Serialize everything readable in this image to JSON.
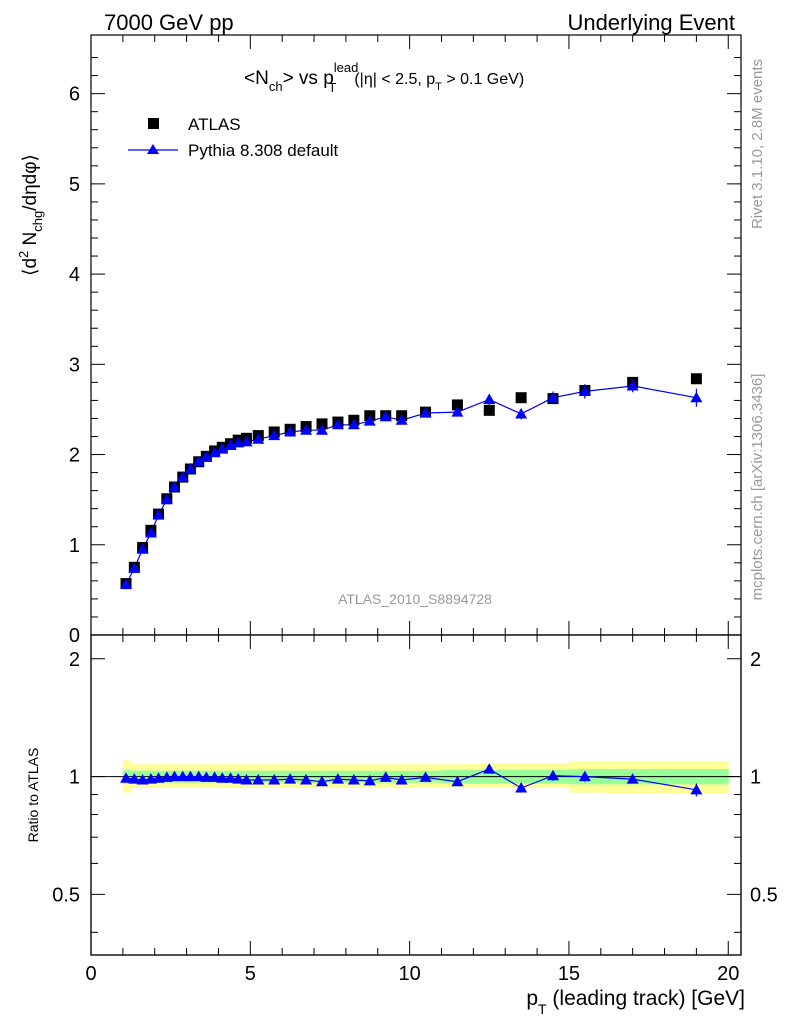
{
  "header": {
    "left": "7000 GeV pp",
    "right": "Underlying Event"
  },
  "plot_title": {
    "main": "<N",
    "main_sub": "ch",
    "vs": "> vs p",
    "vs_sup": "lead",
    "vs_sub": "T",
    "cuts_1": "(|η| < 2.5, p",
    "cuts_sub": "T",
    "cuts_2": " > 0.1 GeV)"
  },
  "side_labels": {
    "rivet": "Rivet 3.1.10,  2.8M events",
    "mcplots": "mcplots.cern.ch [arXiv:1306.3436]",
    "analysis": "ATLAS_2010_S8894728"
  },
  "legend": {
    "atlas": "ATLAS",
    "pythia": "Pythia 8.308 default"
  },
  "axes": {
    "ylabel_main_1": "⟨d",
    "ylabel_main_sup": "2",
    "ylabel_main_2": " N",
    "ylabel_main_sub": "chg",
    "ylabel_main_3": "/dηdφ⟩",
    "ylabel_ratio": "Ratio to ATLAS",
    "xlabel_1": "p",
    "xlabel_sub": "T",
    "xlabel_2": " (leading track) [GeV]"
  },
  "colors": {
    "data": "#000000",
    "mc": "#0000ff",
    "band_inner": "#99ff99",
    "band_outer": "#ffff99"
  },
  "chart_data": [
    {
      "type": "scatter",
      "panel": "main",
      "xlim": [
        0,
        20.4
      ],
      "ylim": [
        0,
        6.65
      ],
      "x_ticks": [
        0,
        5,
        10,
        15,
        20
      ],
      "y_ticks": [
        0,
        1,
        2,
        3,
        4,
        5,
        6
      ],
      "x_tick_labels": [
        "0",
        "5",
        "10",
        "15",
        "20"
      ],
      "y_tick_labels": [
        "0",
        "1",
        "2",
        "3",
        "4",
        "5",
        "6"
      ],
      "series": [
        {
          "name": "ATLAS",
          "marker": "square",
          "x": [
            1.1,
            1.36,
            1.62,
            1.88,
            2.12,
            2.38,
            2.62,
            2.88,
            3.12,
            3.38,
            3.62,
            3.88,
            4.12,
            4.38,
            4.62,
            4.88,
            5.25,
            5.75,
            6.25,
            6.75,
            7.25,
            7.75,
            8.25,
            8.75,
            9.25,
            9.75,
            10.5,
            11.5,
            12.5,
            13.5,
            14.5,
            15.5,
            17.0,
            19.0
          ],
          "y": [
            0.57,
            0.75,
            0.97,
            1.16,
            1.34,
            1.51,
            1.64,
            1.75,
            1.84,
            1.92,
            1.98,
            2.04,
            2.08,
            2.12,
            2.16,
            2.18,
            2.21,
            2.25,
            2.28,
            2.31,
            2.34,
            2.36,
            2.38,
            2.43,
            2.43,
            2.43,
            2.47,
            2.55,
            2.49,
            2.63,
            2.62,
            2.71,
            2.8,
            2.84
          ]
        },
        {
          "name": "Pythia 8.308 default",
          "marker": "triangle",
          "x": [
            1.1,
            1.36,
            1.62,
            1.88,
            2.12,
            2.38,
            2.62,
            2.88,
            3.12,
            3.38,
            3.62,
            3.88,
            4.12,
            4.38,
            4.62,
            4.88,
            5.25,
            5.75,
            6.25,
            6.75,
            7.25,
            7.75,
            8.25,
            8.75,
            9.25,
            9.75,
            10.5,
            11.5,
            12.5,
            13.5,
            14.5,
            15.5,
            17.0,
            19.0
          ],
          "y": [
            0.56,
            0.74,
            0.95,
            1.13,
            1.33,
            1.5,
            1.64,
            1.75,
            1.84,
            1.92,
            1.97,
            2.02,
            2.06,
            2.1,
            2.13,
            2.14,
            2.17,
            2.21,
            2.25,
            2.27,
            2.27,
            2.33,
            2.33,
            2.37,
            2.42,
            2.38,
            2.46,
            2.47,
            2.61,
            2.45,
            2.63,
            2.7,
            2.76,
            2.63
          ],
          "yerr": [
            0.01,
            0.01,
            0.01,
            0.01,
            0.01,
            0.01,
            0.01,
            0.01,
            0.01,
            0.01,
            0.01,
            0.01,
            0.01,
            0.01,
            0.01,
            0.01,
            0.01,
            0.01,
            0.01,
            0.02,
            0.02,
            0.02,
            0.02,
            0.03,
            0.03,
            0.03,
            0.03,
            0.04,
            0.06,
            0.06,
            0.07,
            0.08,
            0.07,
            0.1
          ]
        }
      ]
    },
    {
      "type": "scatter",
      "panel": "ratio",
      "xlim": [
        0,
        20.4
      ],
      "ylim": [
        0.35,
        2.3
      ],
      "x_ticks": [
        0,
        5,
        10,
        15,
        20
      ],
      "y_ticks": [
        0.5,
        1,
        2
      ],
      "x_tick_labels": [
        "0",
        "5",
        "10",
        "15",
        "20"
      ],
      "y_tick_labels": [
        "0.5",
        "1",
        "2"
      ],
      "bands": {
        "edges": [
          1.0,
          1.25,
          1.5,
          2.0,
          2.5,
          3.0,
          3.5,
          4.0,
          4.5,
          5.0,
          6.0,
          7.0,
          8.0,
          9.0,
          10.0,
          11.0,
          12.0,
          13.0,
          14.0,
          15.0,
          16.0,
          18.0,
          20.0
        ],
        "inner_lo": [
          0.96,
          0.965,
          0.965,
          0.965,
          0.965,
          0.965,
          0.965,
          0.965,
          0.965,
          0.965,
          0.965,
          0.965,
          0.965,
          0.965,
          0.965,
          0.96,
          0.96,
          0.96,
          0.96,
          0.955,
          0.955,
          0.955
        ],
        "inner_hi": [
          1.04,
          1.035,
          1.035,
          1.035,
          1.035,
          1.035,
          1.035,
          1.035,
          1.035,
          1.035,
          1.035,
          1.035,
          1.035,
          1.035,
          1.035,
          1.04,
          1.04,
          1.04,
          1.04,
          1.045,
          1.045,
          1.045
        ],
        "outer_lo": [
          0.91,
          0.935,
          0.935,
          0.935,
          0.935,
          0.935,
          0.935,
          0.935,
          0.935,
          0.935,
          0.935,
          0.935,
          0.935,
          0.935,
          0.935,
          0.935,
          0.935,
          0.935,
          0.935,
          0.91,
          0.905,
          0.905
        ],
        "outer_hi": [
          1.1,
          1.075,
          1.075,
          1.075,
          1.075,
          1.075,
          1.075,
          1.075,
          1.075,
          1.075,
          1.075,
          1.075,
          1.075,
          1.075,
          1.075,
          1.075,
          1.08,
          1.08,
          1.08,
          1.095,
          1.095,
          1.095
        ]
      },
      "series": [
        {
          "name": "Pythia 8.308 default",
          "marker": "triangle",
          "x": [
            1.1,
            1.36,
            1.62,
            1.88,
            2.12,
            2.38,
            2.62,
            2.88,
            3.12,
            3.38,
            3.62,
            3.88,
            4.12,
            4.38,
            4.62,
            4.88,
            5.25,
            5.75,
            6.25,
            6.75,
            7.25,
            7.75,
            8.25,
            8.75,
            9.25,
            9.75,
            10.5,
            11.5,
            12.5,
            13.5,
            14.5,
            15.5,
            17.0,
            19.0
          ],
          "y": [
            0.99,
            0.985,
            0.98,
            0.985,
            0.99,
            0.995,
            1.0,
            1.0,
            1.0,
            1.0,
            0.995,
            0.995,
            0.99,
            0.99,
            0.985,
            0.98,
            0.98,
            0.98,
            0.985,
            0.98,
            0.97,
            0.985,
            0.98,
            0.975,
            0.995,
            0.98,
            0.995,
            0.97,
            1.045,
            0.935,
            1.005,
            1.0,
            0.985,
            0.925
          ],
          "yerr": [
            0.01,
            0.01,
            0.01,
            0.01,
            0.01,
            0.01,
            0.01,
            0.01,
            0.01,
            0.01,
            0.01,
            0.01,
            0.01,
            0.01,
            0.01,
            0.01,
            0.01,
            0.01,
            0.01,
            0.01,
            0.01,
            0.01,
            0.01,
            0.01,
            0.01,
            0.01,
            0.015,
            0.015,
            0.025,
            0.025,
            0.03,
            0.03,
            0.025,
            0.035
          ]
        }
      ]
    }
  ]
}
